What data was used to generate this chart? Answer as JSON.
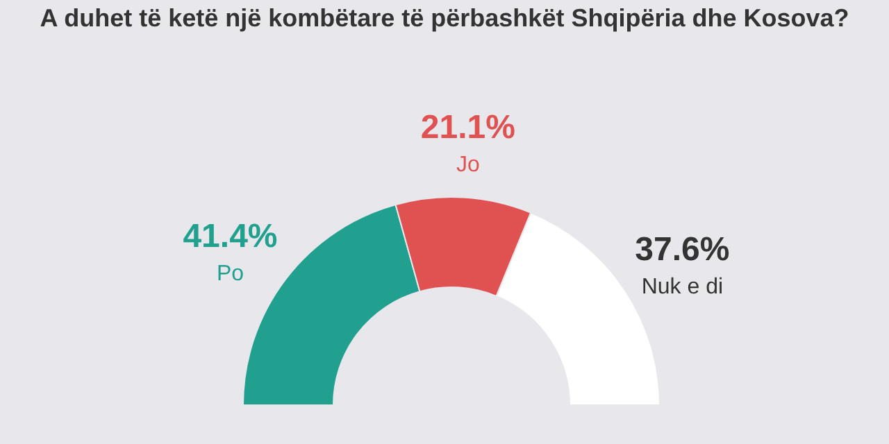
{
  "chart_data": {
    "type": "donut",
    "title": "A duhet të ketë një kombëtare të përbashkët Shqipëria dhe Kosova?",
    "categories": [
      "Po",
      "Jo",
      "Nuk e di"
    ],
    "values": [
      41.4,
      21.1,
      37.6
    ],
    "colors": [
      "#21a08f",
      "#e05252",
      "#ffffff"
    ],
    "value_labels": [
      "41.4%",
      "21.1%",
      "37.6%"
    ],
    "legend": false
  }
}
